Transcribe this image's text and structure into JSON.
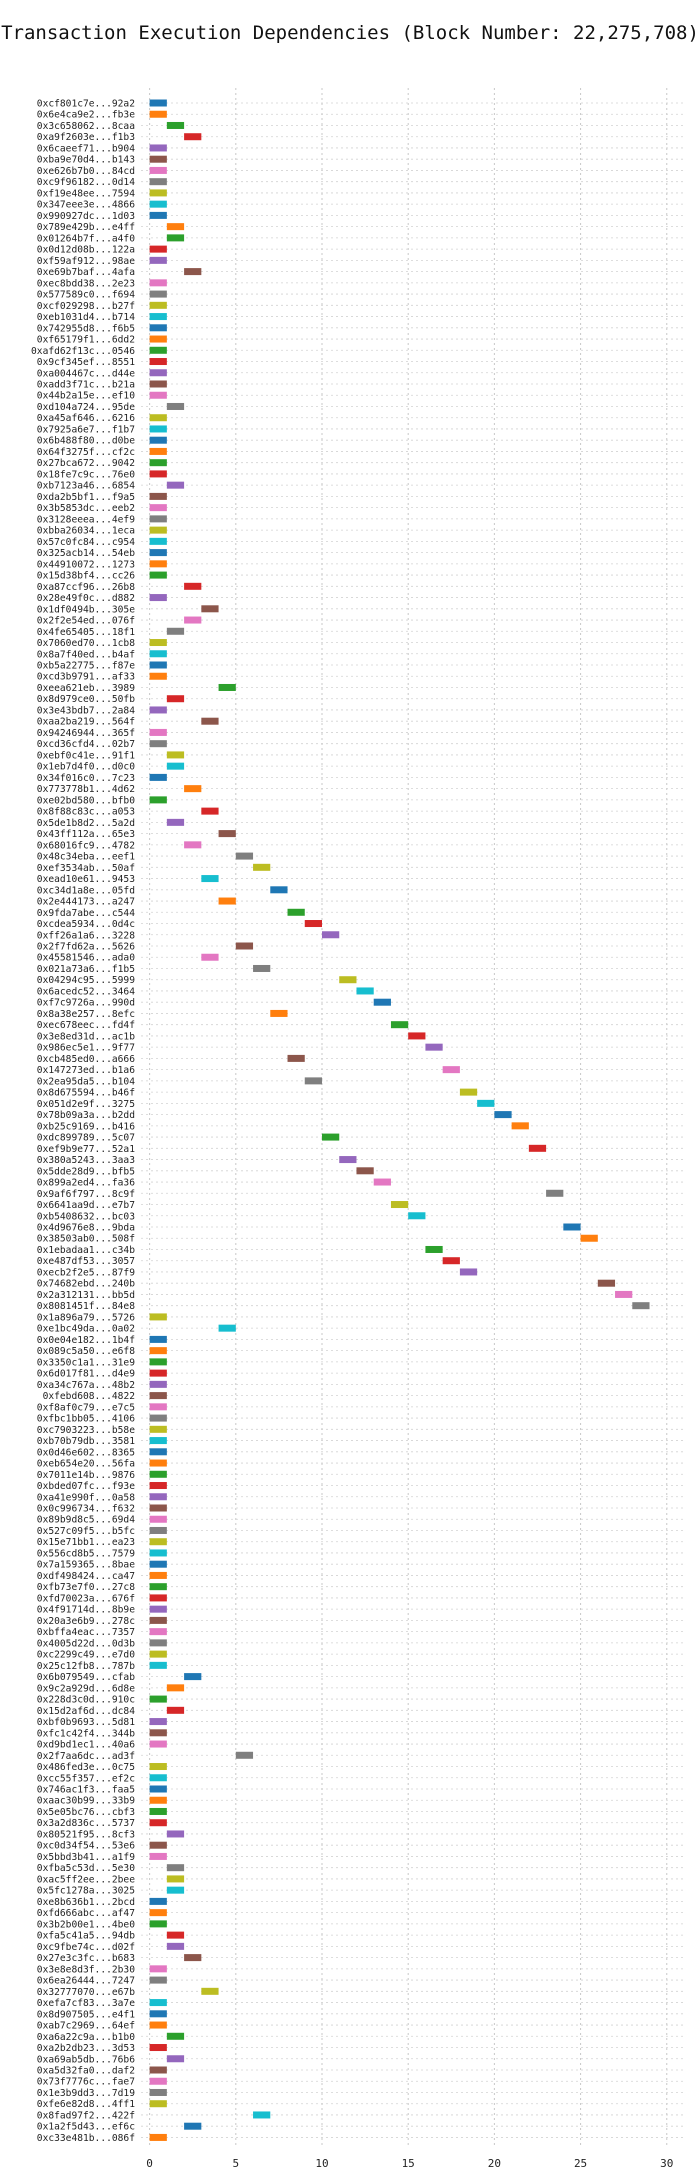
{
  "chart_data": {
    "type": "gantt",
    "title": "Transaction Execution Dependencies (Block Number: 22,275,708)",
    "xlabel": "",
    "ylabel": "",
    "xlim": [
      -0.5,
      31
    ],
    "xticks": [
      0,
      5,
      10,
      15,
      20,
      25,
      30
    ],
    "grid": "dotted",
    "bar_length": 1.0,
    "palette": [
      "#1f77b4",
      "#ff7f0e",
      "#2ca02c",
      "#d62728",
      "#9467bd",
      "#8c564b",
      "#e377c2",
      "#7f7f7f",
      "#bcbd22",
      "#17becf"
    ],
    "transactions": [
      {
        "label": "0xcf801c7e...92a2",
        "start": 0
      },
      {
        "label": "0x6e4ca9e2...fb3e",
        "start": 0
      },
      {
        "label": "0x3c658062...8caa",
        "start": 1
      },
      {
        "label": "0xa9f2603e...f1b3",
        "start": 2
      },
      {
        "label": "0x6caeef71...b904",
        "start": 0
      },
      {
        "label": "0xba9e70d4...b143",
        "start": 0
      },
      {
        "label": "0xe626b7b0...84cd",
        "start": 0
      },
      {
        "label": "0xc9f96182...0d14",
        "start": 0
      },
      {
        "label": "0xf19e48ee...7594",
        "start": 0
      },
      {
        "label": "0x347eee3e...4866",
        "start": 0
      },
      {
        "label": "0x990927dc...1d03",
        "start": 0
      },
      {
        "label": "0x789e429b...e4ff",
        "start": 1
      },
      {
        "label": "0x01264b7f...a4f0",
        "start": 1
      },
      {
        "label": "0x0d12d08b...122a",
        "start": 0
      },
      {
        "label": "0xf59af912...98ae",
        "start": 0
      },
      {
        "label": "0xe69b7baf...4afa",
        "start": 2
      },
      {
        "label": "0xec8bdd38...2e23",
        "start": 0
      },
      {
        "label": "0x577589c0...f694",
        "start": 0
      },
      {
        "label": "0xcf029298...b27f",
        "start": 0
      },
      {
        "label": "0xeb1031d4...b714",
        "start": 0
      },
      {
        "label": "0x742955d8...f6b5",
        "start": 0
      },
      {
        "label": "0xf65179f1...6dd2",
        "start": 0
      },
      {
        "label": "0xafd62f13c...0546",
        "start": 0
      },
      {
        "label": "0x9cf345ef...8551",
        "start": 0
      },
      {
        "label": "0xa004467c...d44e",
        "start": 0
      },
      {
        "label": "0xadd3f71c...b21a",
        "start": 0
      },
      {
        "label": "0x44b2a15e...ef10",
        "start": 0
      },
      {
        "label": "0xd104a724...95de",
        "start": 1
      },
      {
        "label": "0xa45af646...6216",
        "start": 0
      },
      {
        "label": "0x7925a6e7...f1b7",
        "start": 0
      },
      {
        "label": "0x6b488f80...d0be",
        "start": 0
      },
      {
        "label": "0x64f3275f...cf2c",
        "start": 0
      },
      {
        "label": "0x27bca672...9042",
        "start": 0
      },
      {
        "label": "0x18fe7c9c...76e0",
        "start": 0
      },
      {
        "label": "0xb7123a46...6854",
        "start": 1
      },
      {
        "label": "0xda2b5bf1...f9a5",
        "start": 0
      },
      {
        "label": "0x3b5853dc...eeb2",
        "start": 0
      },
      {
        "label": "0x3128eeea...4ef9",
        "start": 0
      },
      {
        "label": "0xbba26034...1eca",
        "start": 0
      },
      {
        "label": "0x57c0fc84...c954",
        "start": 0
      },
      {
        "label": "0x325acb14...54eb",
        "start": 0
      },
      {
        "label": "0x44910072...1273",
        "start": 0
      },
      {
        "label": "0x15d38bf4...cc26",
        "start": 0
      },
      {
        "label": "0xa87ccf96...26b8",
        "start": 2
      },
      {
        "label": "0x28e49f0c...d882",
        "start": 0
      },
      {
        "label": "0x1df0494b...305e",
        "start": 3
      },
      {
        "label": "0x2f2e54ed...076f",
        "start": 2
      },
      {
        "label": "0x4fe65405...18f1",
        "start": 1
      },
      {
        "label": "0x7060ed70...1cb8",
        "start": 0
      },
      {
        "label": "0x8a7f40ed...b4af",
        "start": 0
      },
      {
        "label": "0xb5a22775...f87e",
        "start": 0
      },
      {
        "label": "0xcd3b9791...af33",
        "start": 0
      },
      {
        "label": "0xeea621eb...3989",
        "start": 4
      },
      {
        "label": "0x8d979ce0...50fb",
        "start": 1
      },
      {
        "label": "0x3e43bdb7...2a84",
        "start": 0
      },
      {
        "label": "0xaa2ba219...564f",
        "start": 3
      },
      {
        "label": "0x94246944...365f",
        "start": 0
      },
      {
        "label": "0xcd36cfd4...02b7",
        "start": 0
      },
      {
        "label": "0xebf0c41e...91f1",
        "start": 1
      },
      {
        "label": "0x1eb7d4f0...d0c0",
        "start": 1
      },
      {
        "label": "0x34f016c0...7c23",
        "start": 0
      },
      {
        "label": "0x773778b1...4d62",
        "start": 2
      },
      {
        "label": "0xe02bd580...bfb0",
        "start": 0
      },
      {
        "label": "0x8f88c83c...a053",
        "start": 3
      },
      {
        "label": "0x5de1b8d2...5a2d",
        "start": 1
      },
      {
        "label": "0x43ff112a...65e3",
        "start": 4
      },
      {
        "label": "0x68016fc9...4782",
        "start": 2
      },
      {
        "label": "0x48c34eba...eef1",
        "start": 5
      },
      {
        "label": "0xef3534ab...50af",
        "start": 6
      },
      {
        "label": "0xead10e61...9453",
        "start": 3
      },
      {
        "label": "0xc34d1a8e...05fd",
        "start": 7
      },
      {
        "label": "0x2e444173...a247",
        "start": 4
      },
      {
        "label": "0x9fda7abe...c544",
        "start": 8
      },
      {
        "label": "0xcdea5934...0d4c",
        "start": 9
      },
      {
        "label": "0xff26a1a6...3228",
        "start": 10
      },
      {
        "label": "0x2f7fd62a...5626",
        "start": 5
      },
      {
        "label": "0x45581546...ada0",
        "start": 3
      },
      {
        "label": "0x021a73a6...f1b5",
        "start": 6
      },
      {
        "label": "0x04294c95...5999",
        "start": 11
      },
      {
        "label": "0x6acedc52...3464",
        "start": 12
      },
      {
        "label": "0xf7c9726a...990d",
        "start": 13
      },
      {
        "label": "0x8a38e257...8efc",
        "start": 7
      },
      {
        "label": "0xec678eec...fd4f",
        "start": 14
      },
      {
        "label": "0x3e8ed31d...ac1b",
        "start": 15
      },
      {
        "label": "0x986ec5e1...9f77",
        "start": 16
      },
      {
        "label": "0xcb485ed0...a666",
        "start": 8
      },
      {
        "label": "0x147273ed...b1a6",
        "start": 17
      },
      {
        "label": "0x2ea95da5...b104",
        "start": 9
      },
      {
        "label": "0x8d675594...b46f",
        "start": 18
      },
      {
        "label": "0x051d2e9f...3275",
        "start": 19
      },
      {
        "label": "0x78b09a3a...b2dd",
        "start": 20
      },
      {
        "label": "0xb25c9169...b416",
        "start": 21
      },
      {
        "label": "0xdc899789...5c07",
        "start": 10
      },
      {
        "label": "0xef9b9e77...52a1",
        "start": 22
      },
      {
        "label": "0x380a5243...3aa3",
        "start": 11
      },
      {
        "label": "0x5dde28d9...bfb5",
        "start": 12
      },
      {
        "label": "0x899a2ed4...fa36",
        "start": 13
      },
      {
        "label": "0x9af6f797...8c9f",
        "start": 23
      },
      {
        "label": "0x6641aa9d...e7b7",
        "start": 14
      },
      {
        "label": "0xb5408632...bc03",
        "start": 15
      },
      {
        "label": "0x4d9676e8...9bda",
        "start": 24
      },
      {
        "label": "0x38503ab0...508f",
        "start": 25
      },
      {
        "label": "0x1ebadaa1...c34b",
        "start": 16
      },
      {
        "label": "0xe487df53...3057",
        "start": 17
      },
      {
        "label": "0xecb2f2e5...87f9",
        "start": 18
      },
      {
        "label": "0x74682ebd...240b",
        "start": 26
      },
      {
        "label": "0x2a312131...bb5d",
        "start": 27
      },
      {
        "label": "0x8081451f...84e8",
        "start": 28
      },
      {
        "label": "0x1a896a79...5726",
        "start": 0
      },
      {
        "label": "0xe1bc49da...0a02",
        "start": 4
      },
      {
        "label": "0x0e04e182...1b4f",
        "start": 0
      },
      {
        "label": "0x089c5a50...e6f8",
        "start": 0
      },
      {
        "label": "0x3350c1a1...31e9",
        "start": 0
      },
      {
        "label": "0x6d017f81...d4e9",
        "start": 0
      },
      {
        "label": "0xa34c767a...48b2",
        "start": 0
      },
      {
        "label": "0xfebd608...4822",
        "start": 0
      },
      {
        "label": "0xf8af0c79...e7c5",
        "start": 0
      },
      {
        "label": "0xfbc1bb05...4106",
        "start": 0
      },
      {
        "label": "0xc7903223...b58e",
        "start": 0
      },
      {
        "label": "0xb70b79db...3581",
        "start": 0
      },
      {
        "label": "0x0d46e602...8365",
        "start": 0
      },
      {
        "label": "0xeb654e20...56fa",
        "start": 0
      },
      {
        "label": "0x7011e14b...9876",
        "start": 0
      },
      {
        "label": "0xbded07fc...f93e",
        "start": 0
      },
      {
        "label": "0xa41e990f...0a58",
        "start": 0
      },
      {
        "label": "0x0c996734...f632",
        "start": 0
      },
      {
        "label": "0x89b9d8c5...69d4",
        "start": 0
      },
      {
        "label": "0x527c09f5...b5fc",
        "start": 0
      },
      {
        "label": "0x15e71bb1...ea23",
        "start": 0
      },
      {
        "label": "0x556cd8b5...7579",
        "start": 0
      },
      {
        "label": "0x7a159365...8bae",
        "start": 0
      },
      {
        "label": "0xdf498424...ca47",
        "start": 0
      },
      {
        "label": "0xfb73e7f0...27c8",
        "start": 0
      },
      {
        "label": "0xfd70023a...676f",
        "start": 0
      },
      {
        "label": "0x4f91714d...8b9e",
        "start": 0
      },
      {
        "label": "0x20a3e6b9...278c",
        "start": 0
      },
      {
        "label": "0xbffa4eac...7357",
        "start": 0
      },
      {
        "label": "0x4005d22d...0d3b",
        "start": 0
      },
      {
        "label": "0xc2299c49...e7d0",
        "start": 0
      },
      {
        "label": "0x25c12fb8...787b",
        "start": 0
      },
      {
        "label": "0x6b079549...cfab",
        "start": 2
      },
      {
        "label": "0x9c2a929d...6d8e",
        "start": 1
      },
      {
        "label": "0x228d3c0d...910c",
        "start": 0
      },
      {
        "label": "0x15d2af6d...dc84",
        "start": 1
      },
      {
        "label": "0xbf0b9693...5d81",
        "start": 0
      },
      {
        "label": "0xfc1c42f4...344b",
        "start": 0
      },
      {
        "label": "0xd9bd1ec1...40a6",
        "start": 0
      },
      {
        "label": "0x2f7aa6dc...ad3f",
        "start": 5
      },
      {
        "label": "0x486fed3e...0c75",
        "start": 0
      },
      {
        "label": "0xcc55f357...ef2c",
        "start": 0
      },
      {
        "label": "0x746ac1f3...faa5",
        "start": 0
      },
      {
        "label": "0xaac30b99...33b9",
        "start": 0
      },
      {
        "label": "0x5e05bc76...cbf3",
        "start": 0
      },
      {
        "label": "0x3a2d836c...5737",
        "start": 0
      },
      {
        "label": "0x80521f95...8cf3",
        "start": 1
      },
      {
        "label": "0xc0d34f54...53e6",
        "start": 0
      },
      {
        "label": "0x5bbd3b41...a1f9",
        "start": 0
      },
      {
        "label": "0xfba5c53d...5e30",
        "start": 1
      },
      {
        "label": "0xac5ff2ee...2bee",
        "start": 1
      },
      {
        "label": "0x5fc1278a...3025",
        "start": 1
      },
      {
        "label": "0xe8b636b1...2bcd",
        "start": 0
      },
      {
        "label": "0xfd666abc...af47",
        "start": 0
      },
      {
        "label": "0x3b2b00e1...4be0",
        "start": 0
      },
      {
        "label": "0xfa5c41a5...94db",
        "start": 1
      },
      {
        "label": "0xc9fbe74c...d02f",
        "start": 1
      },
      {
        "label": "0x27e3c3fc...b683",
        "start": 2
      },
      {
        "label": "0x3e8e8d3f...2b30",
        "start": 0
      },
      {
        "label": "0x6ea26444...7247",
        "start": 0
      },
      {
        "label": "0x32777070...e67b",
        "start": 3
      },
      {
        "label": "0xefa7cf83...3a7e",
        "start": 0
      },
      {
        "label": "0x8d907505...e4f1",
        "start": 0
      },
      {
        "label": "0xab7c2969...64ef",
        "start": 0
      },
      {
        "label": "0xa6a22c9a...b1b0",
        "start": 1
      },
      {
        "label": "0xa2b2db23...3d53",
        "start": 0
      },
      {
        "label": "0xa69ab5db...76b6",
        "start": 1
      },
      {
        "label": "0xa5d32fa0...daf2",
        "start": 0
      },
      {
        "label": "0x73f7776c...fae7",
        "start": 0
      },
      {
        "label": "0x1e3b9dd3...7d19",
        "start": 0
      },
      {
        "label": "0xfe6e82d8...4ff1",
        "start": 0
      },
      {
        "label": "0x8fad97f2...422f",
        "start": 6
      },
      {
        "label": "0x1a2f5d43...ef6c",
        "start": 2
      },
      {
        "label": "0xc33e481b...086f",
        "start": 0
      }
    ]
  }
}
